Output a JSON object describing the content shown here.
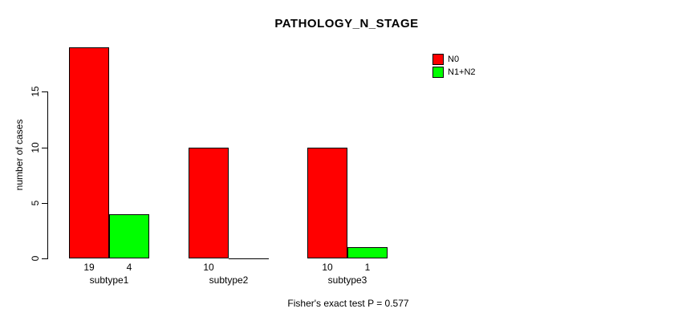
{
  "title": "PATHOLOGY_N_STAGE",
  "ylabel": "number of cases",
  "footer": "Fisher's exact test P = 0.577",
  "colors": {
    "n0": "#ff0000",
    "n1n2": "#00ff00",
    "axis": "#000000",
    "background": "#ffffff"
  },
  "legend": {
    "position": "top-right",
    "items": [
      {
        "label": "N0",
        "color": "#ff0000"
      },
      {
        "label": "N1+N2",
        "color": "#00ff00"
      }
    ]
  },
  "chart_data": {
    "type": "bar",
    "grouped": true,
    "title": "PATHOLOGY_N_STAGE",
    "xlabel": "",
    "ylabel": "number of cases",
    "categories": [
      "subtype1",
      "subtype2",
      "subtype3"
    ],
    "series": [
      {
        "name": "N0",
        "color": "#ff0000",
        "values": [
          19,
          10,
          10
        ]
      },
      {
        "name": "N1+N2",
        "color": "#00ff00",
        "values": [
          4,
          0,
          1
        ]
      }
    ],
    "bar_value_labels": [
      [
        19,
        10,
        10
      ],
      [
        4,
        0,
        1
      ]
    ],
    "show_zero_value_labels": false,
    "yticks": [
      0,
      5,
      10,
      15
    ],
    "ylim": [
      0,
      19
    ],
    "grid": false,
    "legend_position": "top-right",
    "annotation": "Fisher's exact test P = 0.577"
  }
}
